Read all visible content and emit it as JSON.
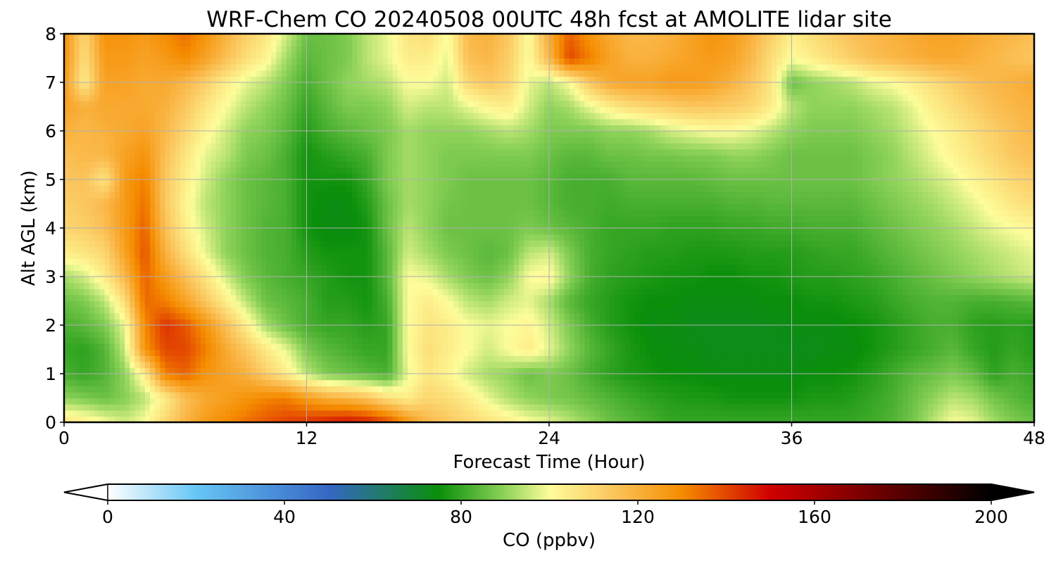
{
  "chart_data": {
    "type": "heatmap",
    "title": "WRF-Chem CO  20240508 00UTC 48h fcst at AMOLITE lidar site",
    "xlabel": "Forecast Time (Hour)",
    "ylabel": "Alt AGL (km)",
    "xlim": [
      0,
      48
    ],
    "ylim": [
      0,
      8
    ],
    "xticks": [
      "0",
      "12",
      "24",
      "36",
      "48"
    ],
    "yticks": [
      "0",
      "1",
      "2",
      "3",
      "4",
      "5",
      "6",
      "7",
      "8"
    ],
    "grid": true,
    "colorbar": {
      "label": "CO  (ppbv)",
      "range": [
        0,
        200
      ],
      "ticks": [
        "0",
        "40",
        "80",
        "120",
        "160",
        "200"
      ],
      "extend": "both",
      "stops": [
        {
          "v": 0,
          "c": "#ffffff"
        },
        {
          "v": 20,
          "c": "#67c6f5"
        },
        {
          "v": 50,
          "c": "#3567c4"
        },
        {
          "v": 75,
          "c": "#0a8f0a"
        },
        {
          "v": 90,
          "c": "#8fd35a"
        },
        {
          "v": 100,
          "c": "#fdfd9a"
        },
        {
          "v": 115,
          "c": "#fbc35a"
        },
        {
          "v": 130,
          "c": "#f58c00"
        },
        {
          "v": 150,
          "c": "#d00000"
        },
        {
          "v": 175,
          "c": "#6a0000"
        },
        {
          "v": 200,
          "c": "#000000"
        }
      ]
    },
    "x": [
      0,
      1,
      2,
      3,
      4,
      5,
      6,
      7,
      8,
      9,
      10,
      11,
      12,
      13,
      14,
      15,
      16,
      17,
      18,
      19,
      20,
      21,
      22,
      23,
      24,
      25,
      26,
      27,
      28,
      29,
      30,
      31,
      32,
      33,
      34,
      35,
      36,
      37,
      38,
      39,
      40,
      41,
      42,
      43,
      44,
      45,
      46,
      47,
      48
    ],
    "y": [
      0,
      0.5,
      1,
      1.5,
      2,
      2.5,
      3,
      3.5,
      4,
      4.5,
      5,
      5.5,
      6,
      6.5,
      7,
      7.5,
      8
    ],
    "values": [
      [
        106,
        104,
        100,
        96,
        100,
        110,
        119,
        126,
        130,
        134,
        138,
        141,
        143,
        146,
        148,
        146,
        140,
        128,
        118,
        114,
        110,
        107,
        104,
        100,
        98,
        94,
        90,
        86,
        84,
        82,
        80,
        80,
        80,
        80,
        80,
        80,
        80,
        80,
        80,
        80,
        81,
        83,
        87,
        94,
        100,
        98,
        92,
        88,
        86
      ],
      [
        90,
        88,
        86,
        89,
        94,
        104,
        116,
        122,
        125,
        128,
        131,
        132,
        126,
        121,
        119,
        115,
        108,
        104,
        110,
        108,
        104,
        98,
        93,
        90,
        88,
        87,
        85,
        83,
        81,
        79,
        78,
        77,
        77,
        76,
        76,
        76,
        76,
        77,
        77,
        78,
        80,
        82,
        86,
        90,
        94,
        92,
        87,
        84,
        82
      ],
      [
        82,
        80,
        83,
        90,
        104,
        132,
        136,
        128,
        124,
        120,
        112,
        104,
        94,
        88,
        86,
        84,
        82,
        98,
        106,
        102,
        96,
        92,
        90,
        86,
        88,
        86,
        82,
        79,
        77,
        76,
        75,
        75,
        74,
        74,
        74,
        74,
        74,
        75,
        75,
        76,
        78,
        81,
        84,
        86,
        88,
        85,
        79,
        82,
        80
      ],
      [
        80,
        79,
        83,
        95,
        128,
        140,
        140,
        132,
        122,
        114,
        105,
        98,
        88,
        84,
        82,
        80,
        80,
        100,
        108,
        104,
        100,
        96,
        100,
        104,
        98,
        90,
        84,
        80,
        77,
        75,
        74,
        74,
        73,
        73,
        73,
        73,
        73,
        73,
        74,
        74,
        76,
        78,
        80,
        82,
        84,
        80,
        78,
        80,
        78
      ],
      [
        82,
        84,
        88,
        98,
        130,
        143,
        138,
        128,
        116,
        104,
        92,
        86,
        82,
        80,
        80,
        78,
        80,
        100,
        106,
        104,
        100,
        98,
        100,
        102,
        96,
        88,
        82,
        78,
        76,
        74,
        74,
        73,
        73,
        73,
        73,
        73,
        74,
        74,
        74,
        75,
        76,
        78,
        80,
        82,
        82,
        79,
        78,
        79,
        78
      ],
      [
        86,
        88,
        94,
        108,
        135,
        132,
        124,
        114,
        104,
        94,
        86,
        84,
        82,
        78,
        78,
        76,
        82,
        100,
        104,
        100,
        94,
        92,
        96,
        98,
        92,
        84,
        80,
        78,
        76,
        75,
        75,
        74,
        74,
        74,
        74,
        75,
        75,
        76,
        76,
        77,
        78,
        80,
        82,
        83,
        83,
        82,
        82,
        83,
        84
      ],
      [
        92,
        96,
        104,
        118,
        136,
        126,
        116,
        106,
        96,
        88,
        84,
        82,
        80,
        78,
        76,
        76,
        84,
        100,
        98,
        92,
        88,
        86,
        90,
        100,
        102,
        90,
        82,
        79,
        78,
        77,
        76,
        76,
        75,
        75,
        76,
        76,
        77,
        78,
        78,
        79,
        80,
        82,
        84,
        86,
        88,
        90,
        92,
        94,
        96
      ],
      [
        104,
        106,
        110,
        124,
        138,
        120,
        108,
        98,
        90,
        86,
        83,
        82,
        78,
        76,
        76,
        76,
        84,
        96,
        92,
        88,
        86,
        84,
        86,
        94,
        96,
        88,
        82,
        80,
        79,
        78,
        78,
        77,
        77,
        77,
        78,
        78,
        78,
        79,
        80,
        80,
        82,
        84,
        86,
        88,
        90,
        92,
        94,
        96,
        98
      ],
      [
        110,
        112,
        116,
        126,
        136,
        116,
        104,
        96,
        90,
        86,
        83,
        82,
        76,
        74,
        74,
        76,
        86,
        94,
        90,
        86,
        86,
        86,
        86,
        88,
        86,
        84,
        82,
        80,
        80,
        80,
        79,
        79,
        79,
        80,
        80,
        81,
        81,
        82,
        82,
        82,
        84,
        86,
        88,
        90,
        92,
        95,
        98,
        100,
        102
      ],
      [
        112,
        114,
        118,
        126,
        134,
        114,
        102,
        94,
        90,
        86,
        84,
        82,
        76,
        74,
        74,
        78,
        86,
        92,
        90,
        87,
        86,
        86,
        86,
        86,
        84,
        82,
        82,
        81,
        82,
        82,
        82,
        82,
        82,
        83,
        83,
        84,
        84,
        84,
        84,
        84,
        86,
        88,
        90,
        92,
        95,
        98,
        102,
        106,
        108
      ],
      [
        114,
        115,
        106,
        126,
        132,
        114,
        104,
        96,
        90,
        86,
        84,
        82,
        76,
        76,
        76,
        80,
        88,
        92,
        90,
        88,
        86,
        86,
        86,
        86,
        84,
        82,
        82,
        82,
        84,
        84,
        84,
        84,
        85,
        86,
        86,
        86,
        86,
        86,
        86,
        86,
        88,
        90,
        92,
        95,
        98,
        102,
        106,
        110,
        112
      ],
      [
        116,
        118,
        118,
        124,
        128,
        116,
        106,
        98,
        94,
        88,
        86,
        82,
        76,
        78,
        80,
        82,
        88,
        92,
        90,
        88,
        88,
        88,
        88,
        88,
        86,
        84,
        84,
        86,
        86,
        87,
        87,
        88,
        88,
        90,
        90,
        88,
        86,
        86,
        86,
        86,
        88,
        90,
        94,
        98,
        102,
        106,
        110,
        114,
        116
      ],
      [
        120,
        118,
        120,
        122,
        124,
        118,
        110,
        102,
        96,
        90,
        88,
        84,
        78,
        82,
        84,
        86,
        88,
        92,
        90,
        90,
        90,
        92,
        94,
        92,
        88,
        88,
        88,
        90,
        90,
        92,
        96,
        98,
        100,
        100,
        98,
        94,
        90,
        88,
        88,
        88,
        90,
        92,
        96,
        100,
        104,
        108,
        112,
        116,
        118
      ],
      [
        124,
        120,
        122,
        122,
        122,
        120,
        114,
        106,
        100,
        94,
        90,
        86,
        80,
        84,
        88,
        88,
        90,
        96,
        94,
        94,
        98,
        102,
        104,
        96,
        90,
        92,
        98,
        104,
        108,
        110,
        112,
        114,
        114,
        112,
        110,
        104,
        94,
        90,
        90,
        90,
        92,
        94,
        98,
        104,
        108,
        112,
        116,
        118,
        120
      ],
      [
        126,
        104,
        124,
        124,
        122,
        122,
        118,
        112,
        104,
        98,
        94,
        88,
        82,
        86,
        90,
        92,
        94,
        100,
        100,
        96,
        110,
        114,
        110,
        98,
        94,
        100,
        114,
        122,
        124,
        124,
        126,
        126,
        124,
        120,
        114,
        106,
        86,
        90,
        92,
        94,
        98,
        100,
        104,
        108,
        112,
        116,
        118,
        120,
        122
      ],
      [
        128,
        108,
        126,
        126,
        124,
        126,
        130,
        124,
        116,
        108,
        102,
        92,
        84,
        86,
        88,
        94,
        98,
        104,
        104,
        98,
        116,
        118,
        112,
        100,
        118,
        140,
        132,
        124,
        120,
        120,
        122,
        124,
        126,
        124,
        118,
        108,
        100,
        104,
        108,
        112,
        116,
        118,
        120,
        122,
        122,
        120,
        118,
        116,
        114
      ],
      [
        128,
        110,
        128,
        128,
        126,
        130,
        134,
        128,
        120,
        112,
        106,
        96,
        86,
        86,
        88,
        94,
        98,
        106,
        108,
        100,
        118,
        120,
        114,
        100,
        122,
        136,
        128,
        122,
        118,
        118,
        120,
        124,
        128,
        126,
        120,
        112,
        104,
        108,
        112,
        116,
        118,
        120,
        122,
        124,
        124,
        122,
        120,
        118,
        116
      ]
    ]
  }
}
